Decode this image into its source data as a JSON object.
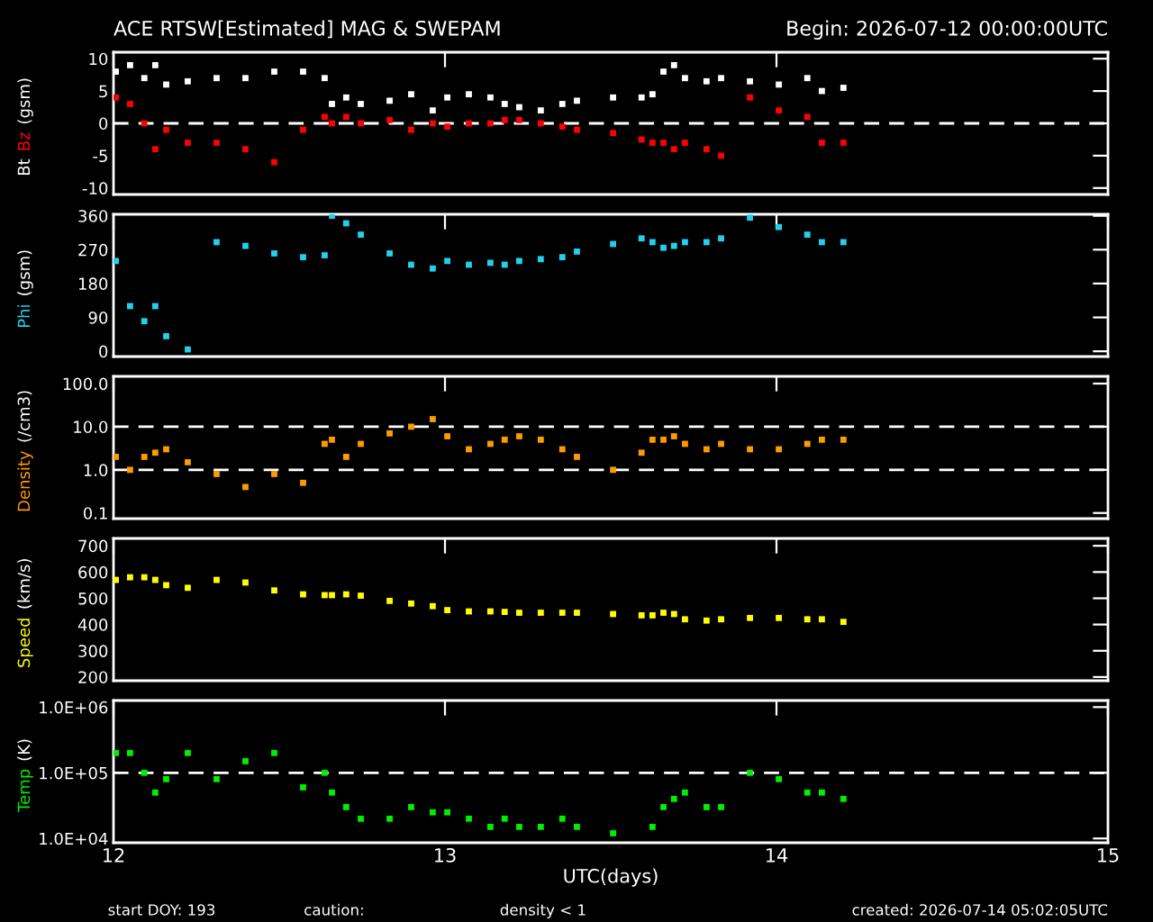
{
  "chart_data": [
    {
      "type": "scatter",
      "title": "ACE RTSW[Estimated] MAG & SWEPAM",
      "subtitle": "Begin: 2026-07-12 00:00:00UTC",
      "ylabel": "(gsm)",
      "marker": "square",
      "tick_labels": "y",
      "x": [
        12.007,
        12.05,
        12.093,
        12.126,
        12.159,
        12.224,
        12.311,
        12.398,
        12.485,
        12.572,
        12.637,
        12.659,
        12.702,
        12.746,
        12.833,
        12.898,
        12.963,
        13.007,
        13.072,
        13.137,
        13.18,
        13.224,
        13.289,
        13.354,
        13.398,
        13.507,
        13.593,
        13.626,
        13.659,
        13.691,
        13.724,
        13.789,
        13.833,
        13.92,
        14.007,
        14.093,
        14.137,
        14.202
      ],
      "series": [
        {
          "name": "Bt",
          "color": "#ffffff",
          "values": [
            8,
            9,
            7,
            9,
            6,
            6.5,
            7,
            7,
            8,
            8,
            7,
            3,
            4,
            3,
            3.5,
            4.5,
            2,
            4,
            4.5,
            4,
            3,
            2.5,
            2,
            3,
            3.5,
            4,
            4,
            4.5,
            8,
            9,
            7,
            6.5,
            7,
            6.5,
            6,
            7,
            5,
            5.5
          ]
        },
        {
          "name": "Bz",
          "color": "#ff0000",
          "values": [
            4,
            3,
            0,
            -4,
            -1,
            -3,
            -3,
            -4,
            -6,
            -1,
            1,
            0,
            1,
            0,
            0.5,
            -1,
            0,
            -0.5,
            0,
            0,
            0.5,
            0.5,
            0,
            -0.5,
            -1,
            -1.5,
            -2.5,
            -3,
            -3,
            -4,
            -3,
            -4,
            -5,
            4,
            2,
            1,
            -3,
            -3
          ]
        }
      ],
      "xlim": [
        12,
        15
      ],
      "xticks": [
        12,
        13,
        14,
        15
      ],
      "ylim": [
        -11,
        11
      ],
      "yticks": [
        -10,
        -5,
        0,
        5,
        10
      ],
      "ref_lines": [
        {
          "axis": "y",
          "value": 0,
          "color": "#ffffff",
          "line_style": "dashed"
        }
      ]
    },
    {
      "type": "scatter",
      "ylabel": "(gsm)",
      "marker": "square",
      "tick_labels": "y",
      "x": [
        12.007,
        12.05,
        12.093,
        12.126,
        12.159,
        12.224,
        12.311,
        12.398,
        12.485,
        12.572,
        12.637,
        12.659,
        12.702,
        12.746,
        12.833,
        12.898,
        12.963,
        13.007,
        13.072,
        13.137,
        13.18,
        13.224,
        13.289,
        13.354,
        13.398,
        13.507,
        13.593,
        13.626,
        13.659,
        13.691,
        13.724,
        13.789,
        13.833,
        13.92,
        14.007,
        14.093,
        14.137,
        14.202
      ],
      "series": [
        {
          "name": "Phi",
          "color": "#22d0ee",
          "values": [
            240,
            120,
            80,
            120,
            40,
            5,
            290,
            280,
            260,
            250,
            255,
            360,
            340,
            310,
            260,
            230,
            220,
            240,
            230,
            235,
            230,
            240,
            245,
            250,
            265,
            285,
            300,
            290,
            275,
            280,
            290,
            290,
            300,
            355,
            330,
            310,
            290,
            290
          ]
        }
      ],
      "xlim": [
        12,
        15
      ],
      "xticks": [
        12,
        13,
        14,
        15
      ],
      "ylim": [
        -14,
        364
      ],
      "yticks": [
        0,
        90,
        180,
        270,
        360
      ]
    },
    {
      "type": "scatter",
      "ylabel": "(/cm3)",
      "marker": "square",
      "tick_labels": "y",
      "log": "y",
      "x": [
        12.007,
        12.05,
        12.093,
        12.126,
        12.159,
        12.224,
        12.311,
        12.398,
        12.485,
        12.572,
        12.637,
        12.659,
        12.702,
        12.746,
        12.833,
        12.898,
        12.963,
        13.007,
        13.072,
        13.137,
        13.18,
        13.224,
        13.289,
        13.354,
        13.398,
        13.507,
        13.593,
        13.626,
        13.659,
        13.691,
        13.724,
        13.789,
        13.833,
        13.92,
        14.007,
        14.093,
        14.137,
        14.202
      ],
      "series": [
        {
          "name": "Density",
          "color": "#ff9a00",
          "values": [
            2,
            1,
            2,
            2.5,
            3,
            1.5,
            0.8,
            0.4,
            0.8,
            0.5,
            4,
            5,
            2,
            4,
            7,
            10,
            15,
            6,
            3,
            4,
            5,
            6,
            5,
            3,
            2,
            1,
            2.5,
            5,
            5,
            6,
            4,
            3,
            4,
            3,
            3,
            4,
            5,
            5
          ]
        }
      ],
      "xlim": [
        12,
        15
      ],
      "xticks": [
        12,
        13,
        14,
        15
      ],
      "ylim": [
        0.074,
        147
      ],
      "yticks": [
        {
          "value": 0.1,
          "label": "0.1"
        },
        {
          "value": 1,
          "label": "1.0"
        },
        {
          "value": 10,
          "label": "10.0"
        },
        {
          "value": 100,
          "label": "100.0"
        }
      ],
      "ref_lines": [
        {
          "axis": "y",
          "value": 1,
          "color": "#ffffff",
          "line_style": "dashed"
        },
        {
          "axis": "y",
          "value": 10,
          "color": "#ffffff",
          "line_style": "dashed"
        }
      ]
    },
    {
      "type": "scatter",
      "ylabel": "(km/s)",
      "marker": "square",
      "tick_labels": "y",
      "x": [
        12.007,
        12.05,
        12.093,
        12.126,
        12.159,
        12.224,
        12.311,
        12.398,
        12.485,
        12.572,
        12.637,
        12.659,
        12.702,
        12.746,
        12.833,
        12.898,
        12.963,
        13.007,
        13.072,
        13.137,
        13.18,
        13.224,
        13.289,
        13.354,
        13.398,
        13.507,
        13.593,
        13.626,
        13.659,
        13.691,
        13.724,
        13.789,
        13.833,
        13.92,
        14.007,
        14.093,
        14.137,
        14.202
      ],
      "series": [
        {
          "name": "Speed",
          "color": "#ffff00",
          "values": [
            570,
            580,
            580,
            570,
            550,
            540,
            570,
            560,
            530,
            515,
            512,
            512,
            515,
            510,
            490,
            480,
            470,
            455,
            450,
            450,
            448,
            445,
            445,
            445,
            445,
            440,
            435,
            435,
            445,
            440,
            420,
            415,
            420,
            425,
            425,
            420,
            420,
            410
          ]
        }
      ],
      "xlim": [
        12,
        15
      ],
      "xticks": [
        12,
        13,
        14,
        15
      ],
      "ylim": [
        186,
        728
      ],
      "yticks": [
        200,
        300,
        400,
        500,
        600,
        700
      ]
    },
    {
      "type": "scatter",
      "ylabel": "(K)",
      "xlabel": "UTC(days)",
      "marker": "square",
      "log": "y",
      "x": [
        12.007,
        12.05,
        12.093,
        12.126,
        12.159,
        12.224,
        12.311,
        12.398,
        12.485,
        12.572,
        12.637,
        12.659,
        12.702,
        12.746,
        12.833,
        12.898,
        12.963,
        13.007,
        13.072,
        13.137,
        13.18,
        13.224,
        13.289,
        13.354,
        13.398,
        13.507,
        13.593,
        13.626,
        13.659,
        13.691,
        13.724,
        13.789,
        13.833,
        13.92,
        14.007,
        14.093,
        14.137,
        14.202
      ],
      "series": [
        {
          "name": "Temp",
          "color": "#00ee00",
          "values": [
            200000,
            200000,
            100000,
            50000,
            80000,
            200000,
            80000,
            150000,
            200000,
            60000,
            100000,
            50000,
            30000,
            20000,
            20000,
            30000,
            25000,
            25000,
            20000,
            15000,
            20000,
            15000,
            15000,
            20000,
            15000,
            12000,
            null,
            15000,
            30000,
            40000,
            50000,
            30000,
            30000,
            100000,
            80000,
            50000,
            50000,
            40000
          ]
        }
      ],
      "xlim": [
        12,
        15
      ],
      "xticks": [
        12,
        13,
        14,
        15
      ],
      "ylim": [
        8600,
        1260000
      ],
      "yticks": [
        {
          "value": 10000,
          "label": "1.0E+04"
        },
        {
          "value": 100000,
          "label": "1.0E+05"
        },
        {
          "value": 1000000,
          "label": "1.0E+06"
        }
      ],
      "ref_lines": [
        {
          "axis": "y",
          "value": 100000,
          "color": "#ffffff",
          "line_style": "dashed"
        }
      ],
      "annotations": [
        "start DOY: 193",
        "caution:",
        "density < 1",
        "created: 2026-07-14 05:02:05UTC"
      ]
    }
  ]
}
